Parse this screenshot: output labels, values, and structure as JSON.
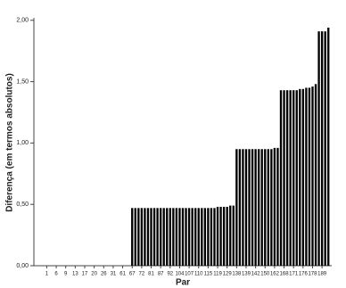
{
  "chart_data": {
    "type": "bar",
    "x_label": "Par",
    "y_label": "Diferença (em termos absolutos)",
    "categories": [
      null,
      null,
      null,
      "1",
      null,
      null,
      "6",
      null,
      null,
      "9",
      null,
      null,
      "13",
      null,
      null,
      "17",
      null,
      null,
      "20",
      null,
      null,
      "26",
      null,
      null,
      "31",
      null,
      null,
      "61",
      null,
      null,
      "67",
      null,
      null,
      "72",
      null,
      null,
      "81",
      null,
      null,
      "87",
      null,
      null,
      "92",
      null,
      null,
      "104",
      null,
      null,
      "107",
      null,
      null,
      "110",
      null,
      null,
      "115",
      null,
      null,
      "119",
      null,
      null,
      "129",
      null,
      null,
      "138",
      null,
      null,
      "139",
      null,
      null,
      "142",
      null,
      null,
      "150",
      null,
      null,
      "162",
      null,
      null,
      "168",
      null,
      null,
      "171",
      null,
      null,
      "176",
      null,
      null,
      "178",
      null,
      null,
      "189",
      null,
      null
    ],
    "values": [
      0,
      0,
      0,
      0,
      0,
      0,
      0,
      0,
      0,
      0,
      0,
      0,
      0,
      0,
      0,
      0,
      0,
      0,
      0,
      0,
      0,
      0,
      0,
      0,
      0,
      0,
      0,
      0,
      0,
      0,
      0.47,
      0.47,
      0.47,
      0.47,
      0.47,
      0.47,
      0.47,
      0.47,
      0.47,
      0.47,
      0.47,
      0.47,
      0.47,
      0.47,
      0.47,
      0.47,
      0.47,
      0.47,
      0.47,
      0.47,
      0.47,
      0.47,
      0.47,
      0.47,
      0.47,
      0.47,
      0.47,
      0.48,
      0.48,
      0.48,
      0.48,
      0.49,
      0.49,
      0.95,
      0.95,
      0.95,
      0.95,
      0.95,
      0.95,
      0.95,
      0.95,
      0.95,
      0.95,
      0.95,
      0.95,
      0.96,
      0.96,
      1.43,
      1.43,
      1.43,
      1.43,
      1.43,
      1.43,
      1.44,
      1.44,
      1.45,
      1.45,
      1.46,
      1.48,
      1.91,
      1.91,
      1.91,
      1.94
    ],
    "color": "#000000",
    "ylim": [
      0,
      2.02
    ],
    "yticks": [
      {
        "value": 0,
        "label": "0,00"
      },
      {
        "value": 0.5,
        "label": "0,50"
      },
      {
        "value": 1,
        "label": "1,00"
      },
      {
        "value": 1.5,
        "label": "1,50"
      },
      {
        "value": 2,
        "label": "2,00"
      }
    ]
  }
}
